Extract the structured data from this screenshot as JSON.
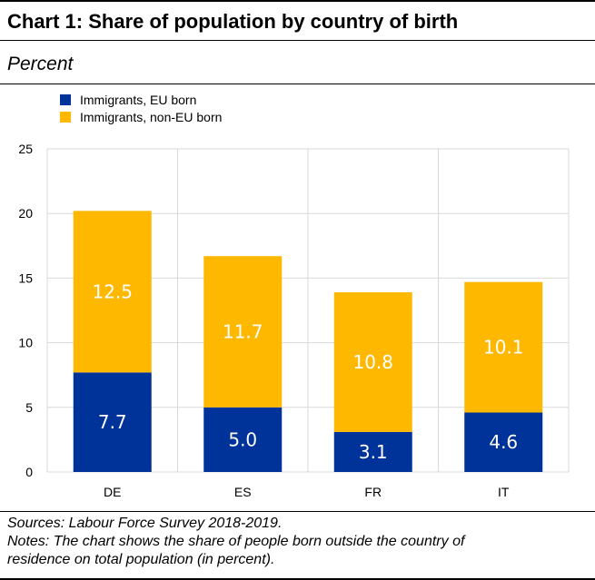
{
  "title": "Chart 1: Share of population by country of birth",
  "subtitle": "Percent",
  "sources": "Sources: Labour Force Survey 2018-2019.",
  "notes_line1": "Notes: The chart shows the share of people born outside the country of",
  "notes_line2": "residence on total population (in percent).",
  "chart_data": {
    "type": "bar",
    "stacked": true,
    "categories": [
      "DE",
      "ES",
      "FR",
      "IT"
    ],
    "series": [
      {
        "name": "Immigrants, EU born",
        "values": [
          7.7,
          5.0,
          3.1,
          4.6
        ],
        "labels": [
          "7.7",
          "5.0",
          "3.1",
          "4.6"
        ],
        "color": "#003399"
      },
      {
        "name": "Immigrants, non-EU born",
        "values": [
          12.5,
          11.7,
          10.8,
          10.1
        ],
        "labels": [
          "12.5",
          "11.7",
          "10.8",
          "10.1"
        ],
        "color": "#FFB800"
      }
    ],
    "ylim": [
      0,
      25
    ],
    "yticks": [
      "0",
      "5",
      "10",
      "15",
      "20",
      "25"
    ],
    "grid": true,
    "legend_position": "top-left"
  }
}
